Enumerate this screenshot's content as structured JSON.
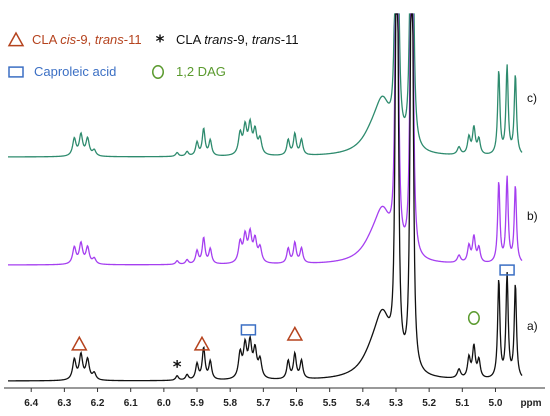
{
  "chart_data": {
    "type": "line",
    "title": "",
    "xlabel": "ppm",
    "ylabel": "",
    "x_reversed": true,
    "xlim": [
      4.92,
      6.47
    ],
    "x_ticks": [
      "6.4",
      "6.3",
      "6.2",
      "6.1",
      "6.0",
      "5.9",
      "5.8",
      "5.7",
      "5.6",
      "5.5",
      "5.4",
      "5.3",
      "5.2",
      "5.1",
      "5.0",
      "ppm"
    ],
    "x_tick_values": [
      6.4,
      6.3,
      6.2,
      6.1,
      6.0,
      5.9,
      5.8,
      5.7,
      5.6,
      5.5,
      5.4,
      5.3,
      5.2,
      5.1,
      5.0
    ],
    "grid": false,
    "series": [
      {
        "id": "c",
        "label": "c)",
        "color": "#2e8b6e",
        "offset": 2
      },
      {
        "id": "b",
        "label": "b)",
        "color": "#a53ff0",
        "offset": 1
      },
      {
        "id": "a",
        "label": "a)",
        "color": "#111111",
        "offset": 0
      }
    ],
    "legend": {
      "placement": "top-left",
      "entries": [
        {
          "marker": "triangle",
          "color": "#b5431e",
          "label_plain": "CLA ",
          "label_italic_1": "cis",
          "label_mid": "-9, ",
          "label_italic_2": "trans",
          "label_end": "-11"
        },
        {
          "marker": "asterisk",
          "color": "#111111",
          "label_plain": "CLA ",
          "label_italic_1": "trans",
          "label_mid": "-9, ",
          "label_italic_2": "trans",
          "label_end": "-11"
        },
        {
          "marker": "square",
          "color": "#3b6fc4",
          "label": "Caproleic acid"
        },
        {
          "marker": "circle",
          "color": "#5a9a2e",
          "label": "1,2 DAG"
        }
      ]
    },
    "peaks": [
      {
        "ppm": 6.27,
        "h": 0.45,
        "w": 0.006
      },
      {
        "ppm": 6.25,
        "h": 0.55,
        "w": 0.006
      },
      {
        "ppm": 6.23,
        "h": 0.45,
        "w": 0.006
      },
      {
        "ppm": 6.21,
        "h": 0.15,
        "w": 0.006
      },
      {
        "ppm": 5.96,
        "h": 0.1,
        "w": 0.005
      },
      {
        "ppm": 5.93,
        "h": 0.12,
        "w": 0.005
      },
      {
        "ppm": 5.9,
        "h": 0.35,
        "w": 0.005
      },
      {
        "ppm": 5.88,
        "h": 0.7,
        "w": 0.005
      },
      {
        "ppm": 5.86,
        "h": 0.4,
        "w": 0.005
      },
      {
        "ppm": 5.77,
        "h": 0.55,
        "w": 0.006
      },
      {
        "ppm": 5.755,
        "h": 0.7,
        "w": 0.006
      },
      {
        "ppm": 5.74,
        "h": 0.75,
        "w": 0.006
      },
      {
        "ppm": 5.725,
        "h": 0.6,
        "w": 0.006
      },
      {
        "ppm": 5.71,
        "h": 0.4,
        "w": 0.006
      },
      {
        "ppm": 5.625,
        "h": 0.4,
        "w": 0.005
      },
      {
        "ppm": 5.605,
        "h": 0.55,
        "w": 0.005
      },
      {
        "ppm": 5.585,
        "h": 0.4,
        "w": 0.005
      },
      {
        "ppm": 5.3,
        "h": 6.0,
        "w": 0.004
      },
      {
        "ppm": 5.295,
        "h": 6.0,
        "w": 0.004
      },
      {
        "ppm": 5.255,
        "h": 6.0,
        "w": 0.004
      },
      {
        "ppm": 5.25,
        "h": 6.0,
        "w": 0.004
      },
      {
        "ppm": 5.11,
        "h": 0.2,
        "w": 0.006
      },
      {
        "ppm": 5.08,
        "h": 0.45,
        "w": 0.005
      },
      {
        "ppm": 5.065,
        "h": 0.7,
        "w": 0.005
      },
      {
        "ppm": 5.05,
        "h": 0.4,
        "w": 0.005
      },
      {
        "ppm": 4.99,
        "h": 2.2,
        "w": 0.004
      },
      {
        "ppm": 4.965,
        "h": 2.3,
        "w": 0.004
      },
      {
        "ppm": 4.94,
        "h": 2.1,
        "w": 0.004
      }
    ],
    "broad": [
      {
        "ppm": 5.37,
        "h": 0.4,
        "w": 0.04
      },
      {
        "ppm": 5.34,
        "h": 1.2,
        "w": 0.03
      }
    ],
    "annotations": [
      {
        "marker": "triangle",
        "ppm": 6.255,
        "series": "a",
        "color": "#b5431e"
      },
      {
        "marker": "asterisk",
        "ppm": 5.96,
        "series": "a",
        "color": "#111111"
      },
      {
        "marker": "triangle",
        "ppm": 5.885,
        "series": "a",
        "color": "#b5431e"
      },
      {
        "marker": "square",
        "ppm": 5.745,
        "series": "a",
        "color": "#3b6fc4"
      },
      {
        "marker": "triangle",
        "ppm": 5.605,
        "series": "a",
        "color": "#b5431e"
      },
      {
        "marker": "circle",
        "ppm": 5.065,
        "series": "a",
        "color": "#5a9a2e"
      },
      {
        "marker": "square",
        "ppm": 4.965,
        "series": "a",
        "color": "#3b6fc4"
      }
    ]
  }
}
